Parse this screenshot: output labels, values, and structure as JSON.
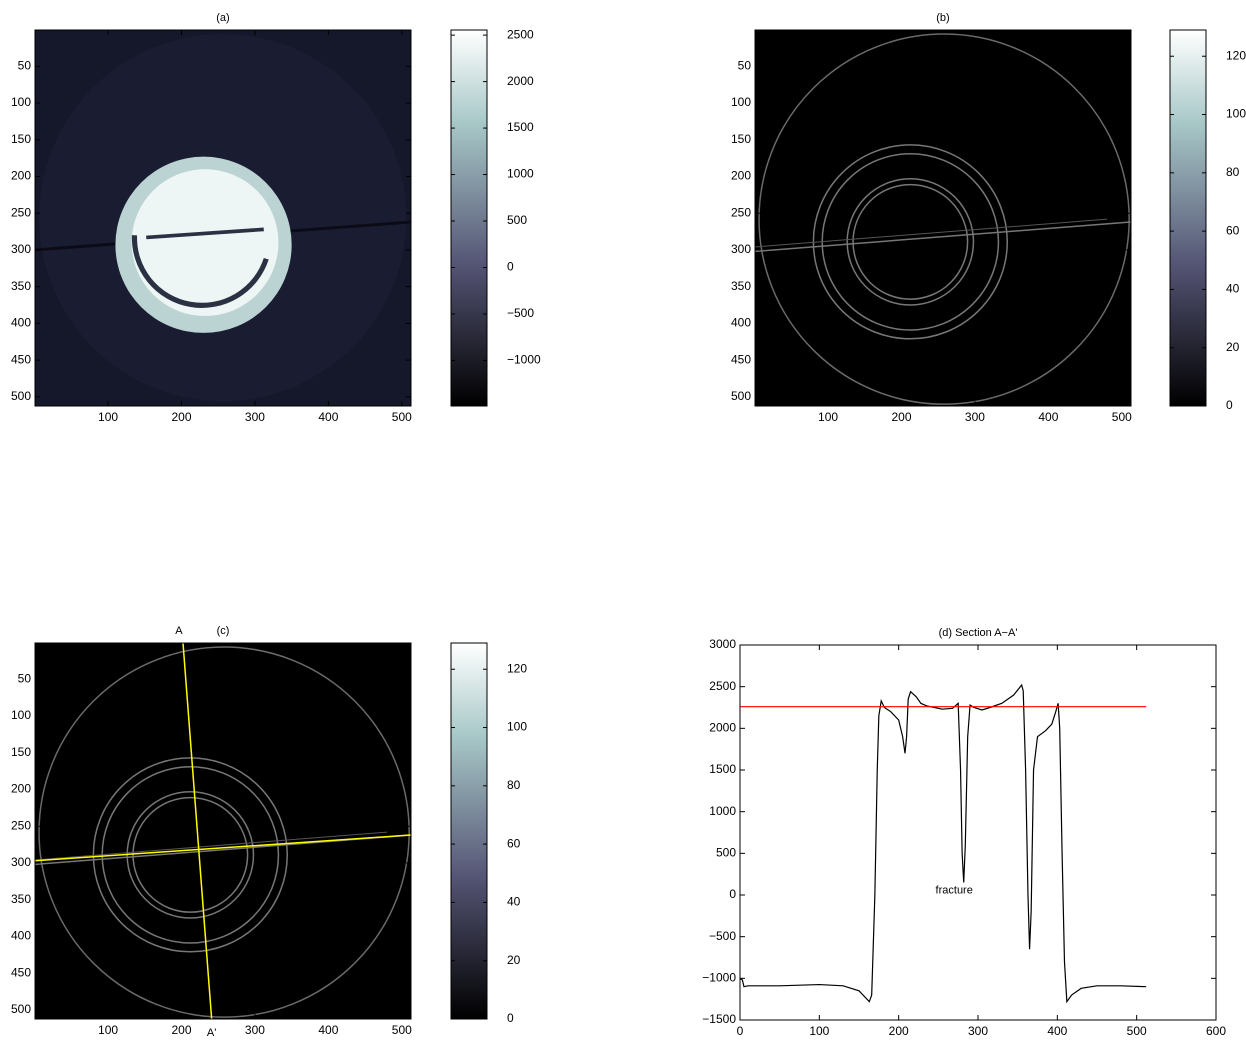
{
  "chart_data": [
    {
      "type": "image",
      "title": "(a)",
      "colormap": "bone",
      "y_reversed": true,
      "xlim": [
        0.5,
        512.5
      ],
      "ylim": [
        0.5,
        512.5
      ],
      "xticks": [
        100,
        200,
        300,
        400,
        500
      ],
      "yticks": [
        50,
        100,
        150,
        200,
        250,
        300,
        350,
        400,
        450,
        500
      ],
      "clim": [
        -1490,
        2555
      ],
      "cticks": [
        {
          "value": -1000,
          "label": "−1000"
        },
        {
          "value": -500,
          "label": "−500"
        },
        0,
        500,
        1000,
        1500,
        2000,
        2500
      ]
    },
    {
      "type": "image",
      "title": "(b)",
      "colormap": "bone",
      "y_reversed": true,
      "xlim": [
        0.5,
        512.5
      ],
      "ylim": [
        0.5,
        512.5
      ],
      "xticks": [
        100,
        200,
        300,
        400,
        500
      ],
      "yticks": [
        50,
        100,
        150,
        200,
        250,
        300,
        350,
        400,
        450,
        500
      ],
      "clim": [
        0,
        129
      ],
      "cticks": [
        0,
        20,
        40,
        60,
        80,
        100,
        120
      ]
    },
    {
      "type": "image",
      "title": "(c)",
      "colormap": "bone",
      "y_reversed": true,
      "xlim": [
        0.5,
        512.5
      ],
      "ylim": [
        0.5,
        512.5
      ],
      "xticks": [
        100,
        200,
        300,
        400,
        500
      ],
      "yticks": [
        50,
        100,
        150,
        200,
        250,
        300,
        350,
        400,
        450,
        500
      ],
      "clim": [
        0,
        129
      ],
      "cticks": [
        0,
        20,
        40,
        60,
        80,
        100,
        120
      ],
      "overlay": [
        {
          "color": "#ffff00",
          "x": [
            202,
            241
          ],
          "y": [
            0,
            512
          ],
          "labels": [
            "A",
            "A'"
          ]
        },
        {
          "color": "#ffff00",
          "x": [
            0,
            512
          ],
          "y": [
            297,
            262
          ]
        }
      ]
    },
    {
      "type": "line",
      "title": "(d) Section A−A'",
      "xlim": [
        0,
        600
      ],
      "ylim": [
        -1500,
        3000
      ],
      "xticks": [
        0,
        100,
        200,
        300,
        400,
        500,
        600
      ],
      "yticks": [
        {
          "value": -1500,
          "label": "−1500"
        },
        {
          "value": -1000,
          "label": "−1000"
        },
        {
          "value": -500,
          "label": "−500"
        },
        0,
        500,
        1000,
        1500,
        2000,
        2500,
        3000
      ],
      "annotations": [
        {
          "text": "fracture"
        }
      ],
      "series": [
        {
          "color": "#000000",
          "x": [
            0,
            3,
            5,
            10,
            50,
            100,
            130,
            150,
            163,
            166,
            170,
            173,
            175,
            178,
            182,
            190,
            200,
            205,
            208,
            210,
            212,
            215,
            222,
            228,
            235,
            245,
            255,
            268,
            275,
            278,
            280,
            282,
            284,
            287,
            290,
            295,
            305,
            315,
            330,
            345,
            355,
            357,
            360,
            363,
            365,
            367,
            370,
            375,
            385,
            393,
            398,
            401,
            403,
            406,
            409,
            412,
            418,
            430,
            450,
            480,
            512
          ],
          "values": [
            -1000,
            -1020,
            -1100,
            -1090,
            -1090,
            -1075,
            -1090,
            -1150,
            -1280,
            -1200,
            0,
            1500,
            2150,
            2330,
            2250,
            2200,
            2100,
            1900,
            1700,
            1900,
            2350,
            2440,
            2380,
            2300,
            2270,
            2250,
            2230,
            2240,
            2300,
            1500,
            500,
            150,
            600,
            1900,
            2280,
            2250,
            2220,
            2250,
            2300,
            2400,
            2520,
            2450,
            1500,
            0,
            -650,
            -200,
            1500,
            1900,
            1970,
            2050,
            2200,
            2300,
            2000,
            500,
            -800,
            -1280,
            -1200,
            -1120,
            -1090,
            -1090,
            -1100
          ]
        },
        {
          "color": "#ff0000",
          "x": [
            0,
            512
          ],
          "values": [
            2260,
            2260
          ]
        }
      ]
    }
  ]
}
